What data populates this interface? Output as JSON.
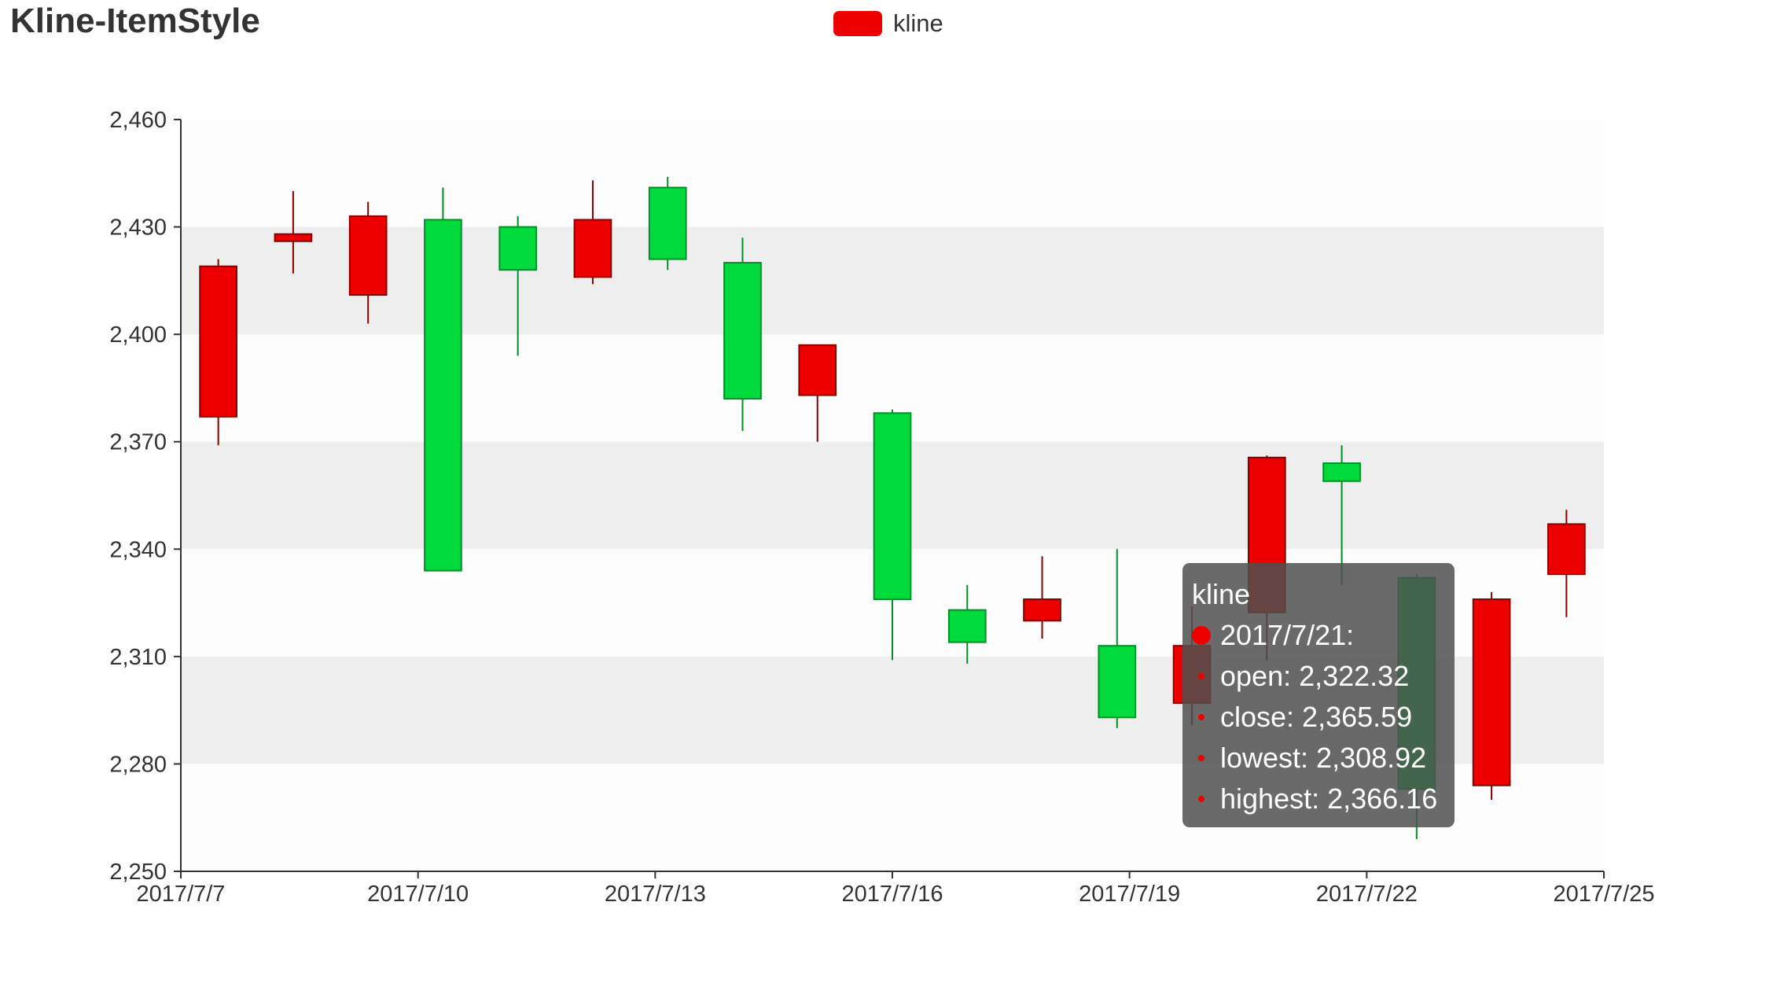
{
  "title": "Kline-ItemStyle",
  "legend": {
    "label": "kline",
    "color": "#ec0000"
  },
  "colors": {
    "up": "#ec0000",
    "up_border": "#8a0000",
    "down": "#00da3c",
    "down_border": "#008f28",
    "split_area": [
      "#fcfcfc",
      "#eeeeee"
    ],
    "axis": "#333333"
  },
  "chart_data": {
    "type": "candlestick",
    "title": "Kline-ItemStyle",
    "series": [
      {
        "name": "kline",
        "values": [
          {
            "x": "2017/7/7",
            "open": 2377.0,
            "close": 2419.0,
            "low": 2369.0,
            "high": 2421.0
          },
          {
            "x": "2017/7/8",
            "open": 2426.0,
            "close": 2428.0,
            "low": 2417.0,
            "high": 2440.0
          },
          {
            "x": "2017/7/9",
            "open": 2411.0,
            "close": 2433.0,
            "low": 2403.0,
            "high": 2437.0
          },
          {
            "x": "2017/7/10",
            "open": 2432.0,
            "close": 2334.0,
            "low": 2334.0,
            "high": 2441.0
          },
          {
            "x": "2017/7/11",
            "open": 2430.0,
            "close": 2418.0,
            "low": 2394.0,
            "high": 2433.0
          },
          {
            "x": "2017/7/12",
            "open": 2416.0,
            "close": 2432.0,
            "low": 2414.0,
            "high": 2443.0
          },
          {
            "x": "2017/7/13",
            "open": 2441.0,
            "close": 2421.0,
            "low": 2418.0,
            "high": 2444.0
          },
          {
            "x": "2017/7/14",
            "open": 2420.0,
            "close": 2382.0,
            "low": 2373.0,
            "high": 2427.0
          },
          {
            "x": "2017/7/15",
            "open": 2383.0,
            "close": 2397.0,
            "low": 2370.0,
            "high": 2397.0
          },
          {
            "x": "2017/7/16",
            "open": 2378.0,
            "close": 2326.0,
            "low": 2309.0,
            "high": 2379.0
          },
          {
            "x": "2017/7/17",
            "open": 2323.0,
            "close": 2314.0,
            "low": 2308.0,
            "high": 2330.0
          },
          {
            "x": "2017/7/18",
            "open": 2320.0,
            "close": 2326.0,
            "low": 2315.0,
            "high": 2338.0
          },
          {
            "x": "2017/7/19",
            "open": 2313.0,
            "close": 2293.0,
            "low": 2290.0,
            "high": 2340.0
          },
          {
            "x": "2017/7/20",
            "open": 2297.0,
            "close": 2313.0,
            "low": 2291.0,
            "high": 2324.0
          },
          {
            "x": "2017/7/21",
            "open": 2322.32,
            "close": 2365.59,
            "low": 2308.92,
            "high": 2366.16
          },
          {
            "x": "2017/7/22",
            "open": 2364.0,
            "close": 2359.0,
            "low": 2330.0,
            "high": 2369.0
          },
          {
            "x": "2017/7/23",
            "open": 2332.0,
            "close": 2273.0,
            "low": 2259.0,
            "high": 2333.0
          },
          {
            "x": "2017/7/24",
            "open": 2274.0,
            "close": 2326.0,
            "low": 2270.0,
            "high": 2328.0
          },
          {
            "x": "2017/7/25",
            "open": 2333.0,
            "close": 2347.0,
            "low": 2321.0,
            "high": 2351.0
          }
        ]
      }
    ],
    "x_ticks": [
      "2017/7/7",
      "2017/7/10",
      "2017/7/13",
      "2017/7/16",
      "2017/7/19",
      "2017/7/22",
      "2017/7/25"
    ],
    "y_ticks": [
      "2,250",
      "2,280",
      "2,310",
      "2,340",
      "2,370",
      "2,400",
      "2,430",
      "2,460"
    ],
    "ylim": [
      2250,
      2460
    ],
    "legend_position": "top-center",
    "split_area": true
  },
  "tooltip": {
    "series_name": "kline",
    "date_line": "2017/7/21:",
    "rows": [
      "open: 2,322.32",
      "close: 2,365.59",
      "lowest: 2,308.92",
      "highest: 2,366.16"
    ]
  }
}
